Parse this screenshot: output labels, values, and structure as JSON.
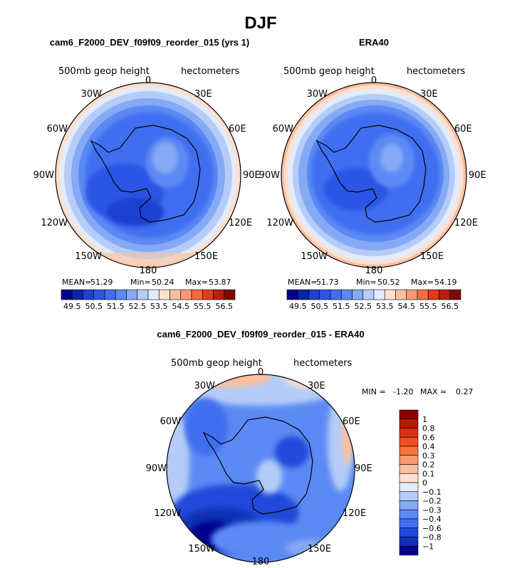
{
  "title": "DJF",
  "chart_data": [
    {
      "type": "heatmap",
      "projection": "south-polar-stereographic",
      "title": "cam6_F2000_DEV_f09f09_reorder_015 (yrs 1)",
      "variable_label": "500mb geop height",
      "units_label": "hectometers",
      "lon_labels": [
        "0",
        "30E",
        "60E",
        "90E",
        "120E",
        "150E",
        "180",
        "150W",
        "120W",
        "90W",
        "60W",
        "30W"
      ],
      "stats": {
        "mean_label": "MEAN=",
        "mean": "51.29",
        "min_label": "Min=",
        "min": "50.24",
        "max_label": "Max=",
        "max": "53.87"
      },
      "colorbar": {
        "levels": [
          "49.5",
          "50",
          "50.5",
          "51",
          "51.5",
          "52",
          "52.5",
          "53",
          "53.5",
          "54",
          "54.5",
          "55",
          "55.5",
          "56",
          "56.5"
        ],
        "tick_labels": [
          "49.5",
          "50.5",
          "51.5",
          "52.5",
          "53.5",
          "54.5",
          "55.5",
          "56.5"
        ],
        "colors": [
          "#00008b",
          "#0d23a8",
          "#1f3fd1",
          "#2b55e6",
          "#3f6ef0",
          "#5c8af4",
          "#86a9f5",
          "#b4ccf7",
          "#e2ecfc",
          "#fde0cf",
          "#fbbf9f",
          "#f99a6e",
          "#f56b3b",
          "#e33b18",
          "#b81e0c",
          "#7d0a05"
        ],
        "orientation": "horizontal"
      }
    },
    {
      "type": "heatmap",
      "projection": "south-polar-stereographic",
      "title": "ERA40",
      "variable_label": "500mb geop height",
      "units_label": "hectometers",
      "lon_labels": [
        "0",
        "30E",
        "60E",
        "90E",
        "120E",
        "150E",
        "180",
        "150W",
        "120W",
        "90W",
        "60W",
        "30W"
      ],
      "stats": {
        "mean_label": "MEAN=",
        "mean": "51.73",
        "min_label": "Min=",
        "min": "50.52",
        "max_label": "Max=",
        "max": "54.19"
      },
      "colorbar": {
        "levels": [
          "49.5",
          "50",
          "50.5",
          "51",
          "51.5",
          "52",
          "52.5",
          "53",
          "53.5",
          "54",
          "54.5",
          "55",
          "55.5",
          "56",
          "56.5"
        ],
        "tick_labels": [
          "49.5",
          "50.5",
          "51.5",
          "52.5",
          "53.5",
          "54.5",
          "55.5",
          "56.5"
        ],
        "colors": [
          "#00008b",
          "#0d23a8",
          "#1f3fd1",
          "#2b55e6",
          "#3f6ef0",
          "#5c8af4",
          "#86a9f5",
          "#b4ccf7",
          "#e2ecfc",
          "#fde0cf",
          "#fbbf9f",
          "#f99a6e",
          "#f56b3b",
          "#e33b18",
          "#b81e0c",
          "#7d0a05"
        ],
        "orientation": "horizontal"
      }
    },
    {
      "type": "heatmap",
      "projection": "south-polar-stereographic",
      "title": "cam6_F2000_DEV_f09f09_reorder_015 - ERA40",
      "variable_label": "500mb geop height",
      "units_label": "hectometers",
      "lon_labels": [
        "0",
        "30E",
        "60E",
        "90E",
        "120E",
        "150E",
        "180",
        "150W",
        "120W",
        "90W",
        "60W",
        "30W"
      ],
      "stats": {
        "min_label": "MIN =",
        "min": "-1.20",
        "max_label": "MAX =",
        "max": "0.27"
      },
      "colorbar": {
        "levels": [
          "1",
          "0.8",
          "0.6",
          "0.4",
          "0.3",
          "0.2",
          "0.1",
          "0",
          "-0.1",
          "-0.2",
          "-0.3",
          "-0.4",
          "-0.6",
          "-0.8",
          "-1"
        ],
        "tick_labels": [
          "1",
          "0.8",
          "0.6",
          "0.4",
          "0.3",
          "0.2",
          "0.1",
          "0",
          "−0.1",
          "−0.2",
          "−0.3",
          "−0.4",
          "−0.6",
          "−0.8",
          "−1"
        ],
        "colors": [
          "#8b0000",
          "#b51a05",
          "#d8300f",
          "#ee4f1f",
          "#f7743f",
          "#f99a6e",
          "#fbbf9f",
          "#fde0cf",
          "#e2ecfc",
          "#b4ccf7",
          "#86a9f5",
          "#5c8af4",
          "#3f6ef0",
          "#2048db",
          "#1130b4",
          "#02028e"
        ],
        "orientation": "vertical"
      }
    }
  ]
}
